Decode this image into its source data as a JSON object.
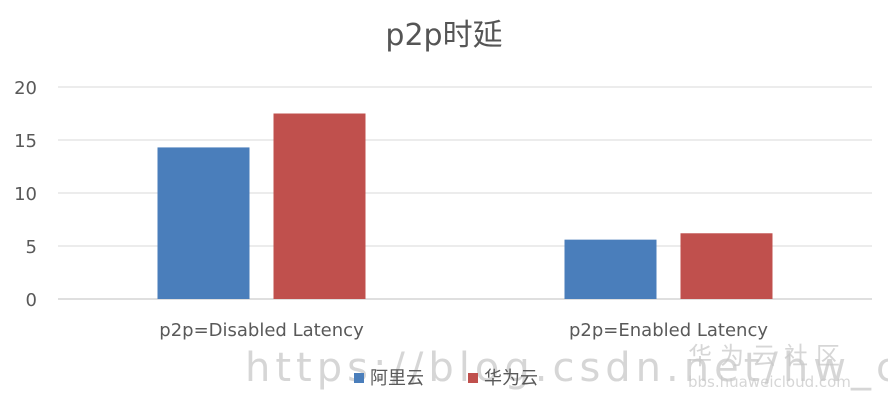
{
  "chart_data": {
    "type": "bar",
    "title": "p2p时延",
    "categories": [
      "p2p=Disabled Latency",
      "p2p=Enabled Latency"
    ],
    "series": [
      {
        "name": "阿里云",
        "values": [
          14.3,
          5.6
        ]
      },
      {
        "name": "华为云",
        "values": [
          17.5,
          6.2
        ]
      }
    ],
    "colors": [
      "#4a7ebb",
      "#c0504d"
    ],
    "y_ticks": [
      0,
      5,
      10,
      15,
      20
    ],
    "ylim": [
      0,
      20
    ],
    "grid": true,
    "legend_position": "bottom"
  },
  "watermarks": {
    "url_text": "https://blog.csdn.net/hw_cloud",
    "brand_text": "华为云社区",
    "brand_url": "bbs.huaweicloud.com"
  }
}
